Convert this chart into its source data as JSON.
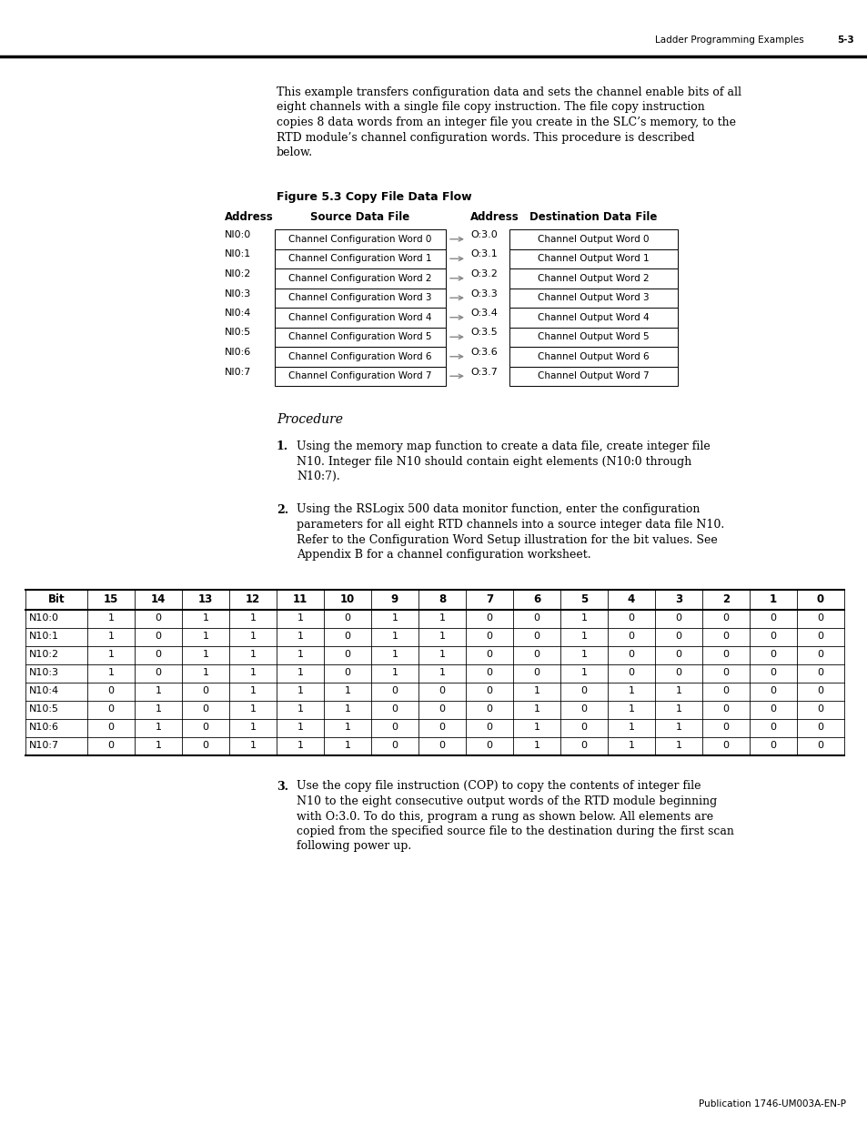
{
  "bg_color": "#ffffff",
  "header_text_left": "Ladder Programming Examples",
  "header_text_right": "5-3",
  "intro_text_lines": [
    "This example transfers configuration data and sets the channel enable bits of all",
    "eight channels with a single file copy instruction. The file copy instruction",
    "copies 8 data words from an integer file you create in the SLC’s memory, to the",
    "RTD module’s channel configuration words. This procedure is described",
    "below."
  ],
  "figure_title": "Figure 5.3 Copy File Data Flow",
  "flow_table": {
    "rows": [
      {
        "src_addr": "NI0:0",
        "src_label": "Channel Configuration Word 0",
        "dst_addr": "O:3.0",
        "dst_label": "Channel Output Word 0"
      },
      {
        "src_addr": "NI0:1",
        "src_label": "Channel Configuration Word 1",
        "dst_addr": "O:3.1",
        "dst_label": "Channel Output Word 1"
      },
      {
        "src_addr": "NI0:2",
        "src_label": "Channel Configuration Word 2",
        "dst_addr": "O:3.2",
        "dst_label": "Channel Output Word 2"
      },
      {
        "src_addr": "NI0:3",
        "src_label": "Channel Configuration Word 3",
        "dst_addr": "O:3.3",
        "dst_label": "Channel Output Word 3"
      },
      {
        "src_addr": "NI0:4",
        "src_label": "Channel Configuration Word 4",
        "dst_addr": "O:3.4",
        "dst_label": "Channel Output Word 4"
      },
      {
        "src_addr": "NI0:5",
        "src_label": "Channel Configuration Word 5",
        "dst_addr": "O:3.5",
        "dst_label": "Channel Output Word 5"
      },
      {
        "src_addr": "NI0:6",
        "src_label": "Channel Configuration Word 6",
        "dst_addr": "O:3.6",
        "dst_label": "Channel Output Word 6"
      },
      {
        "src_addr": "NI0:7",
        "src_label": "Channel Configuration Word 7",
        "dst_addr": "O:3.7",
        "dst_label": "Channel Output Word 7"
      }
    ]
  },
  "procedure_title": "Procedure",
  "step1_text_lines": [
    "Using the memory map function to create a data file, create integer file",
    "N10. Integer file N10 should contain eight elements (N10:0 through",
    "N10:7)."
  ],
  "step2_text_lines": [
    "Using the RSLogix 500 data monitor function, enter the configuration",
    "parameters for all eight RTD channels into a source integer data file N10.",
    "Refer to the Configuration Word Setup illustration for the bit values. See",
    "Appendix B for a channel configuration worksheet."
  ],
  "bit_table_headers": [
    "Bit",
    "15",
    "14",
    "13",
    "12",
    "11",
    "10",
    "9",
    "8",
    "7",
    "6",
    "5",
    "4",
    "3",
    "2",
    "1",
    "0"
  ],
  "bit_table_rows": [
    [
      "N10:0",
      "1",
      "0",
      "1",
      "1",
      "1",
      "0",
      "1",
      "1",
      "0",
      "0",
      "1",
      "0",
      "0",
      "0",
      "0",
      "0"
    ],
    [
      "N10:1",
      "1",
      "0",
      "1",
      "1",
      "1",
      "0",
      "1",
      "1",
      "0",
      "0",
      "1",
      "0",
      "0",
      "0",
      "0",
      "0"
    ],
    [
      "N10:2",
      "1",
      "0",
      "1",
      "1",
      "1",
      "0",
      "1",
      "1",
      "0",
      "0",
      "1",
      "0",
      "0",
      "0",
      "0",
      "0"
    ],
    [
      "N10:3",
      "1",
      "0",
      "1",
      "1",
      "1",
      "0",
      "1",
      "1",
      "0",
      "0",
      "1",
      "0",
      "0",
      "0",
      "0",
      "0"
    ],
    [
      "N10:4",
      "0",
      "1",
      "0",
      "1",
      "1",
      "1",
      "0",
      "0",
      "0",
      "1",
      "0",
      "1",
      "1",
      "0",
      "0",
      "0"
    ],
    [
      "N10:5",
      "0",
      "1",
      "0",
      "1",
      "1",
      "1",
      "0",
      "0",
      "0",
      "1",
      "0",
      "1",
      "1",
      "0",
      "0",
      "0"
    ],
    [
      "N10:6",
      "0",
      "1",
      "0",
      "1",
      "1",
      "1",
      "0",
      "0",
      "0",
      "1",
      "0",
      "1",
      "1",
      "0",
      "0",
      "0"
    ],
    [
      "N10:7",
      "0",
      "1",
      "0",
      "1",
      "1",
      "1",
      "0",
      "0",
      "0",
      "1",
      "0",
      "1",
      "1",
      "0",
      "0",
      "0"
    ]
  ],
  "step3_text_lines": [
    "Use the copy file instruction (COP) to copy the contents of integer file",
    "N10 to the eight consecutive output words of the RTD module beginning",
    "with O:3.0. To do this, program a rung as shown below. All elements are",
    "copied from the specified source file to the destination during the first scan",
    "following power up."
  ],
  "footer_text": "Publication 1746-UM003A-EN-P"
}
